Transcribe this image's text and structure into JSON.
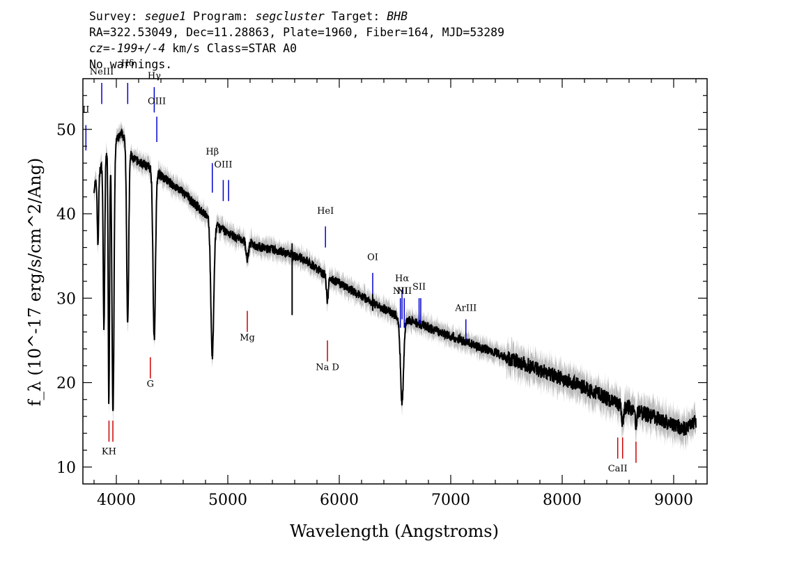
{
  "header": {
    "line1": {
      "survey_label": "Survey:",
      "survey": "segue1",
      "program_label": "Program:",
      "program": "segcluster",
      "target_label": "Target:",
      "target": "BHB"
    },
    "line2": "RA=322.53049, Dec=11.28863, Plate=1960, Fiber=164, MJD=53289",
    "line3": {
      "cz": "cz=-199+/-4",
      "rest": " km/s Class=STAR A0"
    },
    "line4": "No warnings."
  },
  "colors": {
    "spectrum": "#000000",
    "error_band": "#bbbbbb",
    "emission_line": "#0000cc",
    "absorption_line": "#cc0000",
    "axis": "#000000"
  },
  "chart_data": {
    "type": "line",
    "xlabel": "Wavelength (Angstroms)",
    "ylabel": "f_λ (10^-17 erg/s/cm^2/Ang)",
    "xlim": [
      3700,
      9300
    ],
    "ylim": [
      8,
      56
    ],
    "x_ticks": [
      4000,
      5000,
      6000,
      7000,
      8000,
      9000
    ],
    "y_ticks": [
      10,
      20,
      30,
      40,
      50
    ],
    "continuum": [
      [
        3800,
        43
      ],
      [
        3900,
        47
      ],
      [
        4050,
        49.5
      ],
      [
        4150,
        46.5
      ],
      [
        4300,
        45.5
      ],
      [
        4450,
        44
      ],
      [
        4600,
        42.5
      ],
      [
        4750,
        40.5
      ],
      [
        4900,
        38.5
      ],
      [
        5100,
        37
      ],
      [
        5300,
        36
      ],
      [
        5500,
        35.5
      ],
      [
        5700,
        34.5
      ],
      [
        5900,
        32.5
      ],
      [
        6100,
        31
      ],
      [
        6300,
        29.5
      ],
      [
        6500,
        28
      ],
      [
        6700,
        27
      ],
      [
        6900,
        26
      ],
      [
        7100,
        25
      ],
      [
        7300,
        24
      ],
      [
        7500,
        23
      ],
      [
        7700,
        22
      ],
      [
        7900,
        21
      ],
      [
        8100,
        20
      ],
      [
        8300,
        18.8
      ],
      [
        8500,
        17.5
      ],
      [
        8700,
        16.5
      ],
      [
        8900,
        15.5
      ],
      [
        9100,
        14.5
      ],
      [
        9200,
        15.5
      ]
    ],
    "absorption_features": [
      {
        "center": 3835,
        "depth": 8,
        "width": 6
      },
      {
        "center": 3889,
        "depth": 20,
        "width": 7
      },
      {
        "center": 3933,
        "depth": 30,
        "width": 6
      },
      {
        "center": 3970,
        "depth": 32,
        "width": 9
      },
      {
        "center": 4102,
        "depth": 21,
        "width": 9
      },
      {
        "center": 4340,
        "depth": 20,
        "width": 11
      },
      {
        "center": 4861,
        "depth": 16,
        "width": 13
      },
      {
        "center": 5175,
        "depth": 2,
        "width": 10
      },
      {
        "center": 5893,
        "depth": 3,
        "width": 8
      },
      {
        "center": 6563,
        "depth": 10,
        "width": 14
      },
      {
        "center": 8542,
        "depth": 2,
        "width": 8
      },
      {
        "center": 8662,
        "depth": 1.5,
        "width": 8
      }
    ],
    "spikes": [
      {
        "x": 5577,
        "low": 28,
        "high": 36.5
      },
      {
        "x": 6300,
        "low": 28.5,
        "high": 30.5
      }
    ],
    "emission_lines": [
      {
        "label": "II",
        "x": 3727,
        "y0": 47.5,
        "y1": 50.5,
        "label_y": 52
      },
      {
        "label": "NeIII",
        "x": 3869,
        "y0": 53,
        "y1": 55.5,
        "label_y": 56.5
      },
      {
        "label": "Hδ",
        "x": 4102,
        "y0": 53,
        "y1": 55.5,
        "label_y": 57.5
      },
      {
        "label": "Hγ",
        "x": 4340,
        "y0": 52,
        "y1": 55,
        "label_y": 56
      },
      {
        "label": "OIII",
        "x": 4363,
        "y0": 48.5,
        "y1": 51.5,
        "label_y": 53
      },
      {
        "label": "Hβ",
        "x": 4861,
        "y0": 42.5,
        "y1": 46,
        "label_y": 47
      },
      {
        "label": "OIII",
        "x": 4959,
        "y0": 41.5,
        "y1": 44,
        "label_y": 45.5
      },
      {
        "label": "OIII",
        "x": 5007,
        "y0": 41.5,
        "y1": 44,
        "label_y": null
      },
      {
        "label": "HeI",
        "x": 5876,
        "y0": 36,
        "y1": 38.5,
        "label_y": 40
      },
      {
        "label": "OI",
        "x": 6300,
        "y0": 30.5,
        "y1": 33,
        "label_y": 34.5
      },
      {
        "label": "NII",
        "x": 6548,
        "y0": 26.5,
        "y1": 30,
        "label_y": 30.5
      },
      {
        "label": "Hα",
        "x": 6563,
        "y0": 27.5,
        "y1": 31,
        "label_y": 32
      },
      {
        "label": "NII",
        "x": 6583,
        "y0": 26.5,
        "y1": 30,
        "label_y": 30.5
      },
      {
        "label": "SII",
        "x": 6716,
        "y0": 27,
        "y1": 30,
        "label_y": 31
      },
      {
        "label": "SII",
        "x": 6731,
        "y0": 27,
        "y1": 30,
        "label_y": null
      },
      {
        "label": "ArIII",
        "x": 7136,
        "y0": 25,
        "y1": 27.5,
        "label_y": 28.5
      }
    ],
    "absorption_lines": [
      {
        "label": "KH",
        "x": 3934,
        "y0": 13,
        "y1": 15.5,
        "label_y": 11.5
      },
      {
        "label": "KH",
        "x": 3969,
        "y0": 13,
        "y1": 15.5,
        "label_y": null
      },
      {
        "label": "G",
        "x": 4305,
        "y0": 20.5,
        "y1": 23,
        "label_y": 19.5
      },
      {
        "label": "Mg",
        "x": 5175,
        "y0": 26,
        "y1": 28.5,
        "label_y": 25
      },
      {
        "label": "Na D",
        "x": 5894,
        "y0": 22.5,
        "y1": 25,
        "label_y": 21.5
      },
      {
        "label": "CaII",
        "x": 8498,
        "y0": 11,
        "y1": 13.5,
        "label_y": 9.5
      },
      {
        "label": "CaII",
        "x": 8542,
        "y0": 11,
        "y1": 13.5,
        "label_y": null
      },
      {
        "label": "CaII",
        "x": 8662,
        "y0": 10.5,
        "y1": 13,
        "label_y": null
      }
    ]
  }
}
